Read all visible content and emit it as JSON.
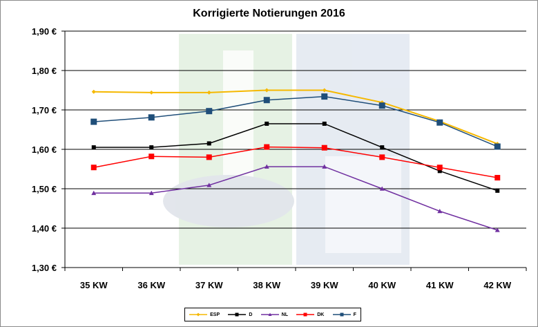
{
  "chart_data": {
    "type": "line",
    "title": "Korrigierte Notierungen 2016",
    "xlabel": "",
    "ylabel": "",
    "categories": [
      "35 KW",
      "36 KW",
      "37 KW",
      "38 KW",
      "39 KW",
      "40 KW",
      "41 KW",
      "42 KW"
    ],
    "ylim": [
      1.3,
      1.9
    ],
    "yticks": [
      1.3,
      1.4,
      1.5,
      1.6,
      1.7,
      1.8,
      1.9
    ],
    "ytick_labels": [
      "1,30 €",
      "1,40 €",
      "1,50 €",
      "1,60 €",
      "1,70 €",
      "1,80 €",
      "1,90 €"
    ],
    "grid": "horizontal",
    "legend_position": "bottom",
    "series": [
      {
        "name": "ESP",
        "color": "#f5b800",
        "marker": "diamond",
        "values": [
          1.746,
          1.744,
          1.744,
          1.75,
          1.75,
          1.719,
          1.671,
          1.614
        ]
      },
      {
        "name": "D",
        "color": "#000000",
        "marker": "square",
        "values": [
          1.605,
          1.605,
          1.615,
          1.665,
          1.665,
          1.605,
          1.545,
          1.495
        ]
      },
      {
        "name": "NL",
        "color": "#7030a0",
        "marker": "triangle",
        "values": [
          1.489,
          1.489,
          1.509,
          1.556,
          1.556,
          1.5,
          1.443,
          1.395
        ]
      },
      {
        "name": "DK",
        "color": "#ff0000",
        "marker": "square",
        "values": [
          1.554,
          1.582,
          1.58,
          1.606,
          1.604,
          1.58,
          1.554,
          1.528
        ]
      },
      {
        "name": "F",
        "color": "#1f4e79",
        "marker": "square",
        "values": [
          1.67,
          1.681,
          1.697,
          1.725,
          1.734,
          1.711,
          1.668,
          1.607
        ]
      }
    ]
  }
}
